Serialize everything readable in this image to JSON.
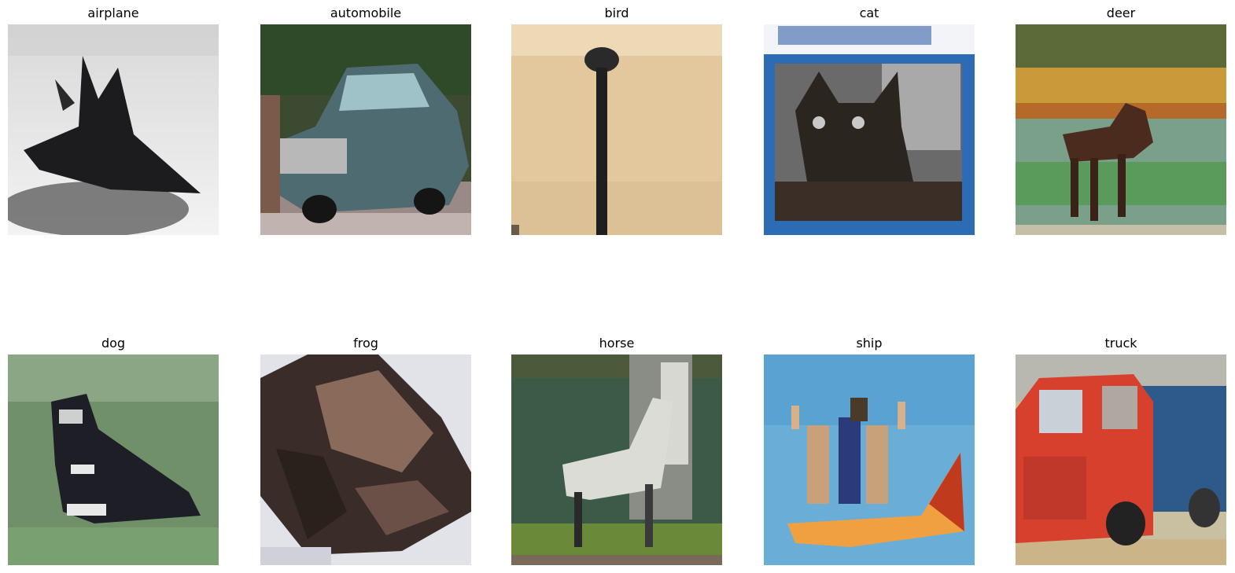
{
  "panels": [
    {
      "label": "airplane"
    },
    {
      "label": "automobile"
    },
    {
      "label": "bird"
    },
    {
      "label": "cat"
    },
    {
      "label": "deer"
    },
    {
      "label": "dog"
    },
    {
      "label": "frog"
    },
    {
      "label": "horse"
    },
    {
      "label": "ship"
    },
    {
      "label": "truck"
    }
  ]
}
